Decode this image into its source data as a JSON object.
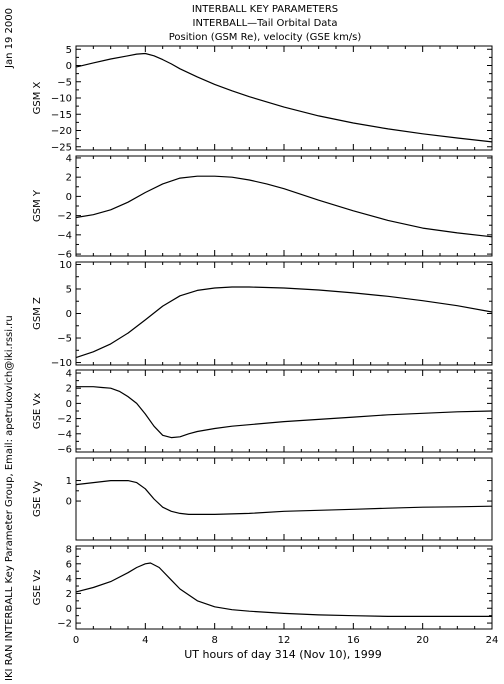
{
  "header": {
    "title_lines": [
      "INTERBALL KEY PARAMETERS",
      "INTERBALL—Tail Orbital Data",
      "Position (GSM Re), velocity (GSE km/s)"
    ],
    "date_stamp": "Jan 19 2000",
    "credit": "IKI RAN INTERBALL Key Parameter Group, Email: apetrukovich@iki.rssi.ru"
  },
  "chart_data": [
    {
      "type": "line",
      "ylabel": "GSM X",
      "ylim": [
        -26,
        6
      ],
      "yticks": [
        5,
        0,
        -5,
        -10,
        -15,
        -20,
        -25
      ],
      "xlim": [
        0,
        24
      ],
      "series": [
        {
          "x": [
            0,
            1,
            2,
            3,
            3.5,
            4,
            4.5,
            5,
            5.5,
            6,
            7,
            8,
            9,
            10,
            12,
            14,
            16,
            18,
            20,
            22,
            24
          ],
          "values": [
            -0.5,
            0.8,
            2.0,
            3.0,
            3.5,
            3.7,
            3.0,
            1.8,
            0.5,
            -1.0,
            -3.5,
            -5.8,
            -7.8,
            -9.6,
            -12.8,
            -15.5,
            -17.7,
            -19.5,
            -21.0,
            -22.3,
            -23.5
          ]
        }
      ]
    },
    {
      "type": "line",
      "ylabel": "GSM Y",
      "ylim": [
        -6.2,
        4.2
      ],
      "yticks": [
        4,
        2,
        0,
        -2,
        -4,
        -6
      ],
      "xlim": [
        0,
        24
      ],
      "series": [
        {
          "x": [
            0,
            1,
            2,
            3,
            4,
            5,
            6,
            7,
            8,
            9,
            10,
            11,
            12,
            14,
            16,
            18,
            20,
            22,
            24
          ],
          "values": [
            -2.2,
            -1.9,
            -1.4,
            -0.6,
            0.4,
            1.3,
            1.9,
            2.1,
            2.1,
            2.0,
            1.7,
            1.3,
            0.8,
            -0.4,
            -1.5,
            -2.5,
            -3.3,
            -3.8,
            -4.2
          ]
        }
      ]
    },
    {
      "type": "line",
      "ylabel": "GSM Z",
      "ylim": [
        -10.5,
        10.5
      ],
      "yticks": [
        10,
        5,
        0,
        -5,
        -10
      ],
      "xlim": [
        0,
        24
      ],
      "series": [
        {
          "x": [
            0,
            1,
            2,
            3,
            4,
            5,
            6,
            7,
            8,
            9,
            10,
            12,
            14,
            16,
            18,
            20,
            22,
            24
          ],
          "values": [
            -9.0,
            -7.8,
            -6.2,
            -4.0,
            -1.3,
            1.5,
            3.6,
            4.7,
            5.2,
            5.4,
            5.4,
            5.2,
            4.8,
            4.2,
            3.5,
            2.6,
            1.6,
            0.3
          ]
        }
      ]
    },
    {
      "type": "line",
      "ylabel": "GSE Vx",
      "ylim": [
        -6.4,
        4.4
      ],
      "yticks": [
        4,
        2,
        0,
        -2,
        -4,
        -6
      ],
      "xlim": [
        0,
        24
      ],
      "series": [
        {
          "x": [
            0,
            1,
            1.5,
            2,
            2.5,
            3,
            3.5,
            4,
            4.5,
            5,
            5.5,
            6,
            6.5,
            7,
            8,
            9,
            10,
            12,
            14,
            16,
            18,
            20,
            22,
            24
          ],
          "values": [
            2.2,
            2.2,
            2.1,
            2.0,
            1.6,
            0.9,
            0.0,
            -1.4,
            -3.0,
            -4.2,
            -4.5,
            -4.4,
            -4.0,
            -3.7,
            -3.3,
            -3.0,
            -2.8,
            -2.4,
            -2.1,
            -1.8,
            -1.5,
            -1.3,
            -1.1,
            -1.0
          ]
        }
      ]
    },
    {
      "type": "line",
      "ylabel": "GSE Vy",
      "ylim": [
        -1.9,
        2.1
      ],
      "yticks": [
        1,
        0
      ],
      "xlim": [
        0,
        24
      ],
      "series": [
        {
          "x": [
            0,
            1,
            2,
            3,
            3.5,
            4,
            4.5,
            5,
            5.5,
            6,
            6.5,
            7,
            8,
            10,
            12,
            14,
            16,
            18,
            20,
            22,
            24
          ],
          "values": [
            0.8,
            0.9,
            1.0,
            1.0,
            0.9,
            0.6,
            0.1,
            -0.3,
            -0.5,
            -0.6,
            -0.65,
            -0.65,
            -0.65,
            -0.6,
            -0.5,
            -0.45,
            -0.4,
            -0.35,
            -0.3,
            -0.28,
            -0.25
          ]
        }
      ]
    },
    {
      "type": "line",
      "ylabel": "GSE Vz",
      "ylim": [
        -2.8,
        8.4
      ],
      "yticks": [
        8,
        6,
        4,
        2,
        0,
        -2
      ],
      "xlim": [
        0,
        24
      ],
      "series": [
        {
          "x": [
            0,
            1,
            2,
            3,
            3.5,
            4,
            4.3,
            4.8,
            5.5,
            6,
            7,
            8,
            9,
            10,
            12,
            14,
            16,
            18,
            20,
            22,
            24
          ],
          "values": [
            2.2,
            2.8,
            3.6,
            4.8,
            5.5,
            6.0,
            6.1,
            5.5,
            3.8,
            2.6,
            1.0,
            0.2,
            -0.2,
            -0.4,
            -0.7,
            -0.9,
            -1.0,
            -1.1,
            -1.1,
            -1.1,
            -1.1
          ]
        }
      ]
    }
  ],
  "x_axis": {
    "ticks": [
      0,
      4,
      8,
      12,
      16,
      20,
      24
    ],
    "title": "UT hours of day 314 (Nov 10), 1999"
  }
}
